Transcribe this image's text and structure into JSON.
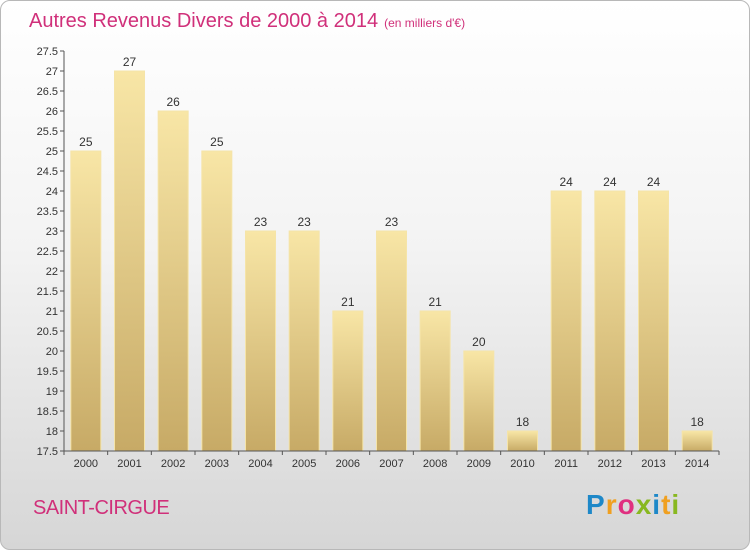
{
  "chart_data": {
    "type": "bar",
    "title": "Autres Revenus Divers de 2000 à 2014",
    "unit": "(en milliers d'€)",
    "categories": [
      "2000",
      "2001",
      "2002",
      "2003",
      "2004",
      "2005",
      "2006",
      "2007",
      "2008",
      "2009",
      "2010",
      "2011",
      "2012",
      "2013",
      "2014"
    ],
    "values": [
      25,
      27,
      26,
      25,
      23,
      23,
      21,
      23,
      21,
      20,
      18,
      24,
      24,
      24,
      18
    ],
    "value_labels": [
      "25",
      "27",
      "26",
      "25",
      "23",
      "23",
      "21",
      "23",
      "21",
      "20",
      "18",
      "24",
      "24",
      "24",
      "18"
    ],
    "ylim": [
      17.5,
      27.5
    ],
    "yticks": [
      "17.5",
      "18",
      "18.5",
      "19",
      "19.5",
      "20",
      "20.5",
      "21",
      "21.5",
      "22",
      "22.5",
      "23",
      "23.5",
      "24",
      "24.5",
      "25",
      "25.5",
      "26",
      "26.5",
      "27",
      "27.5"
    ],
    "grid": false,
    "legend": "none"
  },
  "location": "SAINT-CIRGUE",
  "logo": {
    "letters": [
      "P",
      "r",
      "o",
      "x",
      "i",
      "t",
      "i"
    ],
    "colors": [
      "#1e88c8",
      "#f0a020",
      "#e03080",
      "#88b820",
      "#1e88c8",
      "#f0a020",
      "#88b820"
    ]
  },
  "colors": {
    "accent": "#d0307a",
    "bar_light": "#f7e2a0",
    "bar_dark": "#c8ac68"
  }
}
